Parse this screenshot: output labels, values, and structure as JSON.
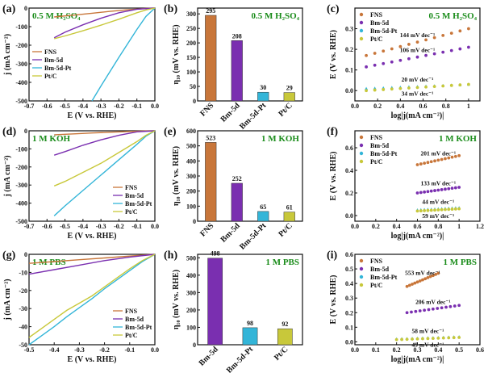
{
  "colors": {
    "FNS": "#c8763a",
    "Bm-5d": "#7a2fb0",
    "Bm-5d-Pt": "#33b5d8",
    "Pt/C": "#c8c83a",
    "condition": "#1a8c1a"
  },
  "chart_data": [
    {
      "panel": "(a)",
      "type": "line",
      "condition": "0.5 M H₂SO₄",
      "xlabel": "E (V vs. RHE)",
      "ylabel": "j (mA cm⁻²)",
      "xlim": [
        -0.7,
        0.0
      ],
      "ylim": [
        -500,
        0
      ],
      "xticks": [
        -0.7,
        -0.6,
        -0.5,
        -0.4,
        -0.3,
        -0.2,
        -0.1,
        0.0
      ],
      "yticks": [
        -500,
        -400,
        -300,
        -200,
        -100,
        0
      ],
      "legend": {
        "placement": "left",
        "entries": [
          "FNS",
          "Bm-5d",
          "Bm-5d-Pt",
          "Pt/C"
        ]
      },
      "series": [
        {
          "name": "FNS",
          "x": [
            -0.56,
            -0.45,
            -0.35,
            -0.25,
            -0.15,
            -0.05,
            0.0
          ],
          "y": [
            -48,
            -38,
            -28,
            -18,
            -9,
            -2,
            0
          ]
        },
        {
          "name": "Bm-5d",
          "x": [
            -0.56,
            -0.5,
            -0.4,
            -0.3,
            -0.2,
            -0.1,
            0.0
          ],
          "y": [
            -160,
            -130,
            -90,
            -55,
            -25,
            -6,
            0
          ]
        },
        {
          "name": "Bm-5d-Pt",
          "x": [
            -0.35,
            -0.3,
            -0.2,
            -0.1,
            -0.05,
            0.0
          ],
          "y": [
            -500,
            -420,
            -265,
            -115,
            -45,
            0
          ]
        },
        {
          "name": "Pt/C",
          "x": [
            -0.56,
            -0.5,
            -0.4,
            -0.3,
            -0.2,
            -0.1,
            -0.05,
            0.0
          ],
          "y": [
            -165,
            -150,
            -122,
            -92,
            -60,
            -25,
            -10,
            0
          ]
        }
      ]
    },
    {
      "panel": "(b)",
      "type": "bar",
      "condition": "0.5 M H₂SO₄",
      "ylabel": "η₁₀ (mV vs. RHE)",
      "ylim": [
        0,
        320
      ],
      "yticks": [
        0,
        50,
        100,
        150,
        200,
        250,
        300
      ],
      "categories": [
        "FNS",
        "Bm-5d",
        "Bm-5d-Pt",
        "Pt/C"
      ],
      "values": [
        295,
        208,
        30,
        29
      ]
    },
    {
      "panel": "(c)",
      "type": "scatter",
      "condition": "0.5 M H₂SO₄",
      "xlabel": "log|j(mA cm⁻²)|",
      "ylabel": "E (V vs. RHE)",
      "xlim": [
        0.0,
        1.1
      ],
      "ylim": [
        -0.05,
        0.4
      ],
      "xticks": [
        0.0,
        0.2,
        0.4,
        0.6,
        0.8,
        1.0
      ],
      "yticks": [
        0.0,
        0.1,
        0.2,
        0.3
      ],
      "legend": {
        "placement": "top-left",
        "entries": [
          "FNS",
          "Bm-5d",
          "Bm-5d-Pt",
          "Pt/C"
        ]
      },
      "series": [
        {
          "name": "FNS",
          "x": [
            0.1,
            1.0
          ],
          "y": [
            0.17,
            0.3
          ],
          "slope": "144 mV dec⁻¹"
        },
        {
          "name": "Bm-5d",
          "x": [
            0.1,
            1.0
          ],
          "y": [
            0.115,
            0.21
          ],
          "slope": "106 mV dec⁻¹"
        },
        {
          "name": "Bm-5d-Pt",
          "x": [
            0.1,
            1.0
          ],
          "y": [
            0.01,
            0.03
          ],
          "slope": "20 mV dec⁻¹"
        },
        {
          "name": "Pt/C",
          "x": [
            0.1,
            1.0
          ],
          "y": [
            0.0,
            0.03
          ],
          "slope": "34 mV dec⁻¹"
        }
      ]
    },
    {
      "panel": "(d)",
      "type": "line",
      "condition": "1 M KOH",
      "xlabel": "E (V vs. RHE)",
      "ylabel": "j (mA cm⁻²)",
      "xlim": [
        -0.7,
        0.0
      ],
      "ylim": [
        -500,
        0
      ],
      "xticks": [
        -0.7,
        -0.6,
        -0.5,
        -0.4,
        -0.3,
        -0.2,
        -0.1,
        0.0
      ],
      "yticks": [
        -500,
        -400,
        -300,
        -200,
        -100,
        0
      ],
      "legend": {
        "placement": "bottom-right",
        "entries": [
          "FNS",
          "Bm-5d",
          "Bm-5d-Pt",
          "Pt/C"
        ]
      },
      "series": [
        {
          "name": "FNS",
          "x": [
            -0.56,
            -0.45,
            -0.35,
            -0.25,
            -0.15,
            -0.05,
            0.0
          ],
          "y": [
            -22,
            -17,
            -12,
            -8,
            -4,
            -1,
            0
          ]
        },
        {
          "name": "Bm-5d",
          "x": [
            -0.56,
            -0.5,
            -0.4,
            -0.3,
            -0.2,
            -0.1,
            0.0
          ],
          "y": [
            -135,
            -115,
            -80,
            -50,
            -25,
            -6,
            0
          ]
        },
        {
          "name": "Bm-5d-Pt",
          "x": [
            -0.56,
            -0.5,
            -0.4,
            -0.3,
            -0.2,
            -0.1,
            -0.05,
            0.0
          ],
          "y": [
            -470,
            -415,
            -330,
            -245,
            -160,
            -75,
            -30,
            0
          ]
        },
        {
          "name": "Pt/C",
          "x": [
            -0.56,
            -0.5,
            -0.4,
            -0.3,
            -0.2,
            -0.1,
            -0.05,
            0.0
          ],
          "y": [
            -305,
            -280,
            -230,
            -180,
            -120,
            -60,
            -25,
            0
          ]
        }
      ]
    },
    {
      "panel": "(e)",
      "type": "bar",
      "condition": "1 M KOH",
      "ylabel": "η₁₀ (mV vs. RHE)",
      "ylim": [
        0,
        600
      ],
      "yticks": [
        0,
        100,
        200,
        300,
        400,
        500,
        600
      ],
      "categories": [
        "FNS",
        "Bm-5d",
        "Bm-5d-Pt",
        "Pt/C"
      ],
      "values": [
        523,
        252,
        65,
        61
      ]
    },
    {
      "panel": "(f)",
      "type": "scatter",
      "condition": "1 M KOH",
      "xlabel": "log|j(mA cm⁻²)|",
      "ylabel": "E (V vs. RHE)",
      "xlim": [
        0.0,
        1.2
      ],
      "ylim": [
        -0.05,
        0.75
      ],
      "xticks": [
        0.0,
        0.2,
        0.4,
        0.6,
        0.8,
        1.0,
        1.2
      ],
      "yticks": [
        0.0,
        0.2,
        0.4,
        0.6
      ],
      "legend": {
        "placement": "top-left",
        "entries": [
          "FNS",
          "Bm-5d",
          "Bm-5d-Pt",
          "Pt/C"
        ]
      },
      "series": [
        {
          "name": "FNS",
          "x": [
            0.6,
            1.0
          ],
          "y": [
            0.45,
            0.53
          ],
          "slope": "201 mV dec⁻¹"
        },
        {
          "name": "Bm-5d",
          "x": [
            0.6,
            1.0
          ],
          "y": [
            0.2,
            0.25
          ],
          "slope": "133 mV dec⁻¹"
        },
        {
          "name": "Bm-5d-Pt",
          "x": [
            0.6,
            1.0
          ],
          "y": [
            0.05,
            0.07
          ],
          "slope": "44 mV dec⁻¹"
        },
        {
          "name": "Pt/C",
          "x": [
            0.6,
            1.0
          ],
          "y": [
            0.04,
            0.06
          ],
          "slope": "59 mV dec⁻¹"
        }
      ]
    },
    {
      "panel": "(g)",
      "type": "line",
      "condition": "1 M PBS",
      "xlabel": "E (V vs. RHE)",
      "ylabel": "j (mA cm⁻²)",
      "xlim": [
        -0.5,
        0.0
      ],
      "ylim": [
        -50,
        0
      ],
      "xticks": [
        -0.5,
        -0.4,
        -0.3,
        -0.2,
        -0.1,
        0.0
      ],
      "yticks": [
        -50,
        -40,
        -30,
        -20,
        -10,
        0
      ],
      "legend": {
        "placement": "bottom-right",
        "entries": [
          "FNS",
          "Bm-5d",
          "Bm-5d-Pt",
          "Pt/C"
        ]
      },
      "series": [
        {
          "name": "FNS",
          "x": [
            -0.5,
            -0.4,
            -0.3,
            -0.2,
            -0.1,
            0.0
          ],
          "y": [
            -5,
            -4,
            -3,
            -2,
            -1,
            0
          ]
        },
        {
          "name": "Bm-5d",
          "x": [
            -0.5,
            -0.4,
            -0.3,
            -0.2,
            -0.1,
            0.0
          ],
          "y": [
            -11,
            -8.5,
            -6,
            -3.5,
            -1.5,
            0
          ]
        },
        {
          "name": "Bm-5d-Pt",
          "x": [
            -0.5,
            -0.45,
            -0.4,
            -0.35,
            -0.3,
            -0.25,
            -0.2,
            -0.15,
            -0.1,
            -0.05,
            0.0
          ],
          "y": [
            -50,
            -45,
            -40,
            -34.5,
            -29.5,
            -24.5,
            -19,
            -14,
            -9,
            -4,
            0
          ]
        },
        {
          "name": "Pt/C",
          "x": [
            -0.5,
            -0.45,
            -0.4,
            -0.35,
            -0.3,
            -0.25,
            -0.2,
            -0.15,
            -0.1,
            -0.05,
            0.0
          ],
          "y": [
            -46,
            -41,
            -36,
            -31,
            -27,
            -23,
            -18,
            -13,
            -8,
            -3.5,
            0
          ]
        }
      ]
    },
    {
      "panel": "(h)",
      "type": "bar",
      "condition": "1 M PBS",
      "ylabel": "η₁₀ (mV vs. RHE)",
      "ylim": [
        0,
        520
      ],
      "yticks": [
        0,
        100,
        200,
        300,
        400,
        500
      ],
      "categories": [
        "Bm-5d",
        "Bm-5d-Pt",
        "Pt/C"
      ],
      "values": [
        498,
        98,
        92
      ]
    },
    {
      "panel": "(i)",
      "type": "scatter",
      "condition": "1 M PBS",
      "xlabel": "log|j(mA cm⁻²)|",
      "ylabel": "E (V vs. RHE)",
      "xlim": [
        0.0,
        0.6
      ],
      "ylim": [
        -0.02,
        0.6
      ],
      "xticks": [
        0.0,
        0.1,
        0.2,
        0.3,
        0.4,
        0.5,
        0.6
      ],
      "yticks": [
        0.0,
        0.1,
        0.2,
        0.3,
        0.4,
        0.5,
        0.6
      ],
      "legend": {
        "placement": "top-left",
        "entries": [
          "FNS",
          "Bm-5d",
          "Bm-5d-Pt",
          "Pt/C"
        ]
      },
      "series": [
        {
          "name": "FNS",
          "x": [
            0.25,
            0.4
          ],
          "y": [
            0.38,
            0.47
          ],
          "slope": "553 mV dec⁻¹"
        },
        {
          "name": "Bm-5d",
          "x": [
            0.25,
            0.5
          ],
          "y": [
            0.2,
            0.25
          ],
          "slope": "206 mV dec⁻¹"
        },
        {
          "name": "Bm-5d-Pt",
          "x": [
            0.2,
            0.5
          ],
          "y": [
            0.02,
            0.035
          ],
          "slope": "58 mV dec⁻¹"
        },
        {
          "name": "Pt/C",
          "x": [
            0.2,
            0.5
          ],
          "y": [
            0.015,
            0.03
          ],
          "slope": "49 mV dec⁻¹"
        }
      ]
    }
  ]
}
